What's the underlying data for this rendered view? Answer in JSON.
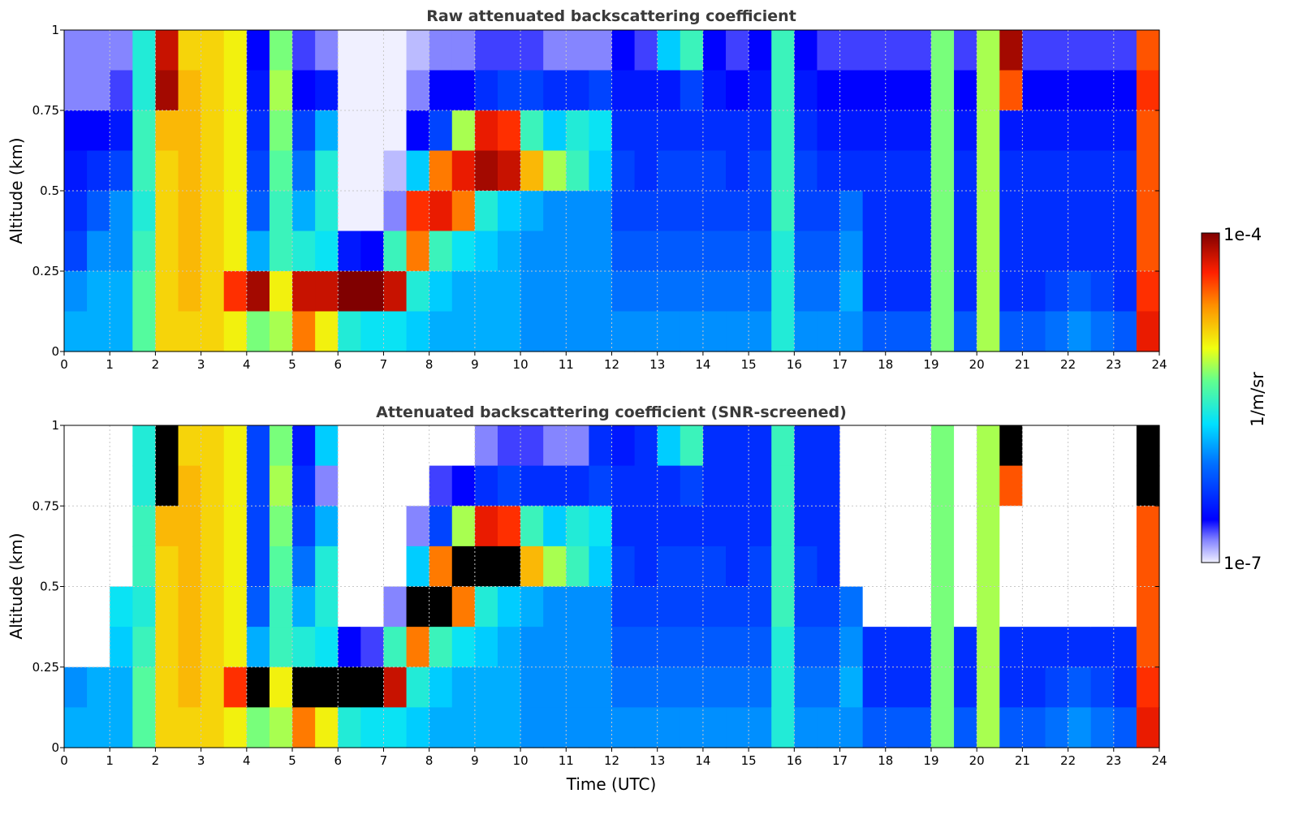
{
  "chart_data": [
    {
      "type": "heatmap",
      "title": "Raw attenuated backscattering coefficient",
      "xlabel": "",
      "ylabel": "Altitude (km)",
      "xlim": [
        0,
        24
      ],
      "ylim": [
        0,
        1
      ],
      "x_ticks": [
        "0",
        "1",
        "2",
        "3",
        "4",
        "5",
        "6",
        "7",
        "8",
        "9",
        "10",
        "11",
        "12",
        "13",
        "14",
        "15",
        "16",
        "17",
        "18",
        "19",
        "20",
        "21",
        "22",
        "23",
        "24"
      ],
      "y_ticks": [
        "0",
        "0.25",
        "0.5",
        "0.75",
        "1"
      ],
      "grid": true,
      "time_bin_hours": 0.5,
      "altitude_bins_top_to_bottom_km": [
        [
          0.875,
          1
        ],
        [
          0.75,
          0.875
        ],
        [
          0.625,
          0.75
        ],
        [
          0.5,
          0.625
        ],
        [
          0.375,
          0.5
        ],
        [
          0.25,
          0.375
        ],
        [
          0.125,
          0.25
        ],
        [
          0,
          0.125
        ]
      ],
      "value_units": "log10(1/m/sr)",
      "columns": [
        [
          -6.8,
          -6.8,
          -6.6,
          -6.5,
          -6.4,
          -6.3,
          -6.0,
          -5.9
        ],
        [
          -6.8,
          -6.8,
          -6.6,
          -6.4,
          -6.2,
          -6.0,
          -5.9,
          -5.9
        ],
        [
          -6.8,
          -6.7,
          -6.5,
          -6.3,
          -6.0,
          -6.0,
          -5.9,
          -5.9
        ],
        [
          -5.6,
          -5.6,
          -5.5,
          -5.5,
          -5.6,
          -5.5,
          -5.4,
          -5.4
        ],
        [
          -4.2,
          -4.1,
          -4.8,
          -4.9,
          -4.9,
          -4.9,
          -4.9,
          -4.9
        ],
        [
          -4.9,
          -4.8,
          -4.8,
          -4.8,
          -4.8,
          -4.8,
          -4.8,
          -4.9
        ],
        [
          -4.9,
          -4.9,
          -4.9,
          -4.9,
          -4.9,
          -4.9,
          -4.9,
          -4.9
        ],
        [
          -5.0,
          -5.0,
          -5.0,
          -5.0,
          -5.0,
          -5.0,
          -4.4,
          -5.0
        ],
        [
          -6.6,
          -6.5,
          -6.4,
          -6.3,
          -6.2,
          -5.9,
          -4.1,
          -5.3
        ],
        [
          -5.3,
          -5.2,
          -5.3,
          -5.4,
          -5.5,
          -5.5,
          -5.0,
          -5.2
        ],
        [
          -6.7,
          -6.6,
          -6.3,
          -6.1,
          -5.9,
          -5.6,
          -4.2,
          -4.6
        ],
        [
          -6.8,
          -6.5,
          -5.9,
          -5.6,
          -5.6,
          -5.7,
          -4.2,
          -5.0
        ],
        [
          -7.0,
          -7.0,
          -7.0,
          -7.0,
          -7.0,
          -6.5,
          -4.0,
          -5.6
        ],
        [
          -7.0,
          -7.0,
          -7.0,
          -7.0,
          -7.0,
          -6.6,
          -4.0,
          -5.7
        ],
        [
          -7.0,
          -7.0,
          -7.0,
          -6.9,
          -6.8,
          -5.5,
          -4.2,
          -5.7
        ],
        [
          -6.9,
          -6.8,
          -6.6,
          -5.8,
          -4.4,
          -4.6,
          -5.6,
          -5.8
        ],
        [
          -6.8,
          -6.6,
          -6.3,
          -4.6,
          -4.3,
          -5.5,
          -5.8,
          -5.9
        ],
        [
          -6.8,
          -6.6,
          -5.2,
          -4.3,
          -4.6,
          -5.7,
          -5.9,
          -5.9
        ],
        [
          -6.7,
          -6.4,
          -4.3,
          -4.1,
          -5.6,
          -5.8,
          -5.9,
          -5.9
        ],
        [
          -6.7,
          -6.3,
          -4.4,
          -4.2,
          -5.8,
          -5.9,
          -5.9,
          -5.9
        ],
        [
          -6.7,
          -6.3,
          -5.5,
          -4.8,
          -5.9,
          -6.0,
          -6.0,
          -6.0
        ],
        [
          -6.8,
          -6.4,
          -5.8,
          -5.2,
          -6.0,
          -6.0,
          -6.0,
          -6.0
        ],
        [
          -6.8,
          -6.4,
          -5.6,
          -5.5,
          -6.0,
          -6.0,
          -6.0,
          -6.0
        ],
        [
          -6.8,
          -6.3,
          -5.7,
          -5.8,
          -6.0,
          -6.0,
          -6.0,
          -6.0
        ],
        [
          -6.6,
          -6.5,
          -6.4,
          -6.3,
          -6.3,
          -6.2,
          -6.1,
          -6.0
        ],
        [
          -6.7,
          -6.5,
          -6.4,
          -6.4,
          -6.3,
          -6.2,
          -6.1,
          -6.0
        ],
        [
          -5.8,
          -6.5,
          -6.4,
          -6.3,
          -6.3,
          -6.2,
          -6.1,
          -6.0
        ],
        [
          -5.5,
          -6.3,
          -6.4,
          -6.3,
          -6.3,
          -6.2,
          -6.1,
          -6.0
        ],
        [
          -6.6,
          -6.5,
          -6.4,
          -6.3,
          -6.3,
          -6.2,
          -6.1,
          -6.0
        ],
        [
          -6.7,
          -6.6,
          -6.4,
          -6.4,
          -6.3,
          -6.2,
          -6.1,
          -6.0
        ],
        [
          -6.6,
          -6.5,
          -6.4,
          -6.3,
          -6.3,
          -6.2,
          -6.1,
          -6.0
        ],
        [
          -5.5,
          -5.5,
          -5.5,
          -5.5,
          -5.5,
          -5.6,
          -5.6,
          -5.6
        ],
        [
          -6.6,
          -6.5,
          -6.4,
          -6.3,
          -6.3,
          -6.2,
          -6.1,
          -6.0
        ],
        [
          -6.7,
          -6.6,
          -6.5,
          -6.4,
          -6.3,
          -6.2,
          -6.1,
          -6.0
        ],
        [
          -6.7,
          -6.6,
          -6.5,
          -6.4,
          -6.1,
          -6.0,
          -5.9,
          -6.0
        ],
        [
          -6.7,
          -6.6,
          -6.5,
          -6.4,
          -6.4,
          -6.4,
          -6.4,
          -6.2
        ],
        [
          -6.7,
          -6.6,
          -6.5,
          -6.4,
          -6.4,
          -6.4,
          -6.4,
          -6.2
        ],
        [
          -6.7,
          -6.6,
          -6.5,
          -6.4,
          -6.4,
          -6.4,
          -6.4,
          -6.2
        ],
        [
          -5.3,
          -5.3,
          -5.3,
          -5.3,
          -5.3,
          -5.3,
          -5.3,
          -5.3
        ],
        [
          -6.7,
          -6.6,
          -6.5,
          -6.4,
          -6.4,
          -6.4,
          -6.4,
          -6.2
        ],
        [
          -5.2,
          -5.2,
          -5.2,
          -5.2,
          -5.2,
          -5.2,
          -5.2,
          -5.2
        ],
        [
          -4.1,
          -4.5,
          -6.5,
          -6.4,
          -6.4,
          -6.4,
          -6.4,
          -6.2
        ],
        [
          -6.7,
          -6.6,
          -6.5,
          -6.4,
          -6.4,
          -6.4,
          -6.4,
          -6.2
        ],
        [
          -6.7,
          -6.6,
          -6.5,
          -6.4,
          -6.4,
          -6.4,
          -6.3,
          -6.1
        ],
        [
          -6.7,
          -6.6,
          -6.5,
          -6.4,
          -6.4,
          -6.4,
          -6.2,
          -6.0
        ],
        [
          -6.7,
          -6.6,
          -6.5,
          -6.4,
          -6.4,
          -6.4,
          -6.3,
          -6.1
        ],
        [
          -6.7,
          -6.6,
          -6.5,
          -6.4,
          -6.4,
          -6.4,
          -6.4,
          -6.2
        ],
        [
          -4.5,
          -4.4,
          -4.5,
          -4.5,
          -4.5,
          -4.5,
          -4.4,
          -4.3
        ]
      ]
    },
    {
      "type": "heatmap",
      "title": "Attenuated backscattering coefficient (SNR-screened)",
      "xlabel": "Time (UTC)",
      "ylabel": "Altitude (km)",
      "xlim": [
        0,
        24
      ],
      "ylim": [
        0,
        1
      ],
      "x_ticks": [
        "0",
        "1",
        "2",
        "3",
        "4",
        "5",
        "6",
        "7",
        "8",
        "9",
        "10",
        "11",
        "12",
        "13",
        "14",
        "15",
        "16",
        "17",
        "18",
        "19",
        "20",
        "21",
        "22",
        "23",
        "24"
      ],
      "y_ticks": [
        "0",
        "0.25",
        "0.5",
        "0.75",
        "1"
      ],
      "grid": true,
      "time_bin_hours": 0.5,
      "value_units": "log10(1/m/sr); null = screened out; above -4 = saturated (black)",
      "columns": [
        [
          null,
          null,
          null,
          null,
          null,
          null,
          -6.0,
          -5.9
        ],
        [
          null,
          null,
          null,
          null,
          null,
          null,
          -5.9,
          -5.9
        ],
        [
          null,
          null,
          null,
          null,
          -5.7,
          -5.8,
          -5.9,
          -5.9
        ],
        [
          -5.6,
          -5.6,
          -5.5,
          -5.5,
          -5.6,
          -5.5,
          -5.4,
          -5.4
        ],
        [
          -3.9,
          -3.9,
          -4.8,
          -4.9,
          -4.9,
          -4.9,
          -4.9,
          -4.9
        ],
        [
          -4.9,
          -4.8,
          -4.8,
          -4.8,
          -4.8,
          -4.8,
          -4.8,
          -4.9
        ],
        [
          -4.9,
          -4.9,
          -4.9,
          -4.9,
          -4.9,
          -4.9,
          -4.9,
          -4.9
        ],
        [
          -5.0,
          -5.0,
          -5.0,
          -5.0,
          -5.0,
          -5.0,
          -4.4,
          -5.0
        ],
        [
          -6.3,
          -6.3,
          -6.3,
          -6.3,
          -6.2,
          -5.9,
          -3.9,
          -5.3
        ],
        [
          -5.3,
          -5.2,
          -5.3,
          -5.4,
          -5.5,
          -5.5,
          -5.0,
          -5.2
        ],
        [
          -6.5,
          -6.4,
          -6.3,
          -6.1,
          -5.9,
          -5.6,
          -3.9,
          -4.6
        ],
        [
          -5.8,
          -6.8,
          -5.9,
          -5.6,
          -5.6,
          -5.7,
          -3.9,
          -5.0
        ],
        [
          null,
          null,
          null,
          null,
          null,
          -6.6,
          -3.9,
          -5.6
        ],
        [
          null,
          null,
          null,
          null,
          null,
          -6.7,
          -3.9,
          -5.7
        ],
        [
          null,
          null,
          null,
          null,
          -6.8,
          -5.5,
          -4.2,
          -5.7
        ],
        [
          null,
          null,
          -6.8,
          -5.8,
          -3.9,
          -4.6,
          -5.6,
          -5.8
        ],
        [
          null,
          -6.7,
          -6.3,
          -4.6,
          -3.9,
          -5.5,
          -5.8,
          -5.9
        ],
        [
          null,
          -6.6,
          -5.2,
          -3.9,
          -4.6,
          -5.7,
          -5.9,
          -5.9
        ],
        [
          -6.8,
          -6.4,
          -4.3,
          -3.9,
          -5.6,
          -5.8,
          -5.9,
          -5.9
        ],
        [
          -6.7,
          -6.3,
          -4.4,
          -3.9,
          -5.8,
          -5.9,
          -5.9,
          -5.9
        ],
        [
          -6.7,
          -6.4,
          -5.5,
          -4.8,
          -5.9,
          -6.0,
          -6.0,
          -6.0
        ],
        [
          -6.8,
          -6.4,
          -5.8,
          -5.2,
          -6.0,
          -6.0,
          -6.0,
          -6.0
        ],
        [
          -6.8,
          -6.4,
          -5.6,
          -5.5,
          -6.0,
          -6.0,
          -6.0,
          -6.0
        ],
        [
          -6.4,
          -6.3,
          -5.7,
          -5.8,
          -6.0,
          -6.0,
          -6.0,
          -6.0
        ],
        [
          -6.5,
          -6.4,
          -6.4,
          -6.3,
          -6.3,
          -6.2,
          -6.1,
          -6.0
        ],
        [
          -6.4,
          -6.4,
          -6.4,
          -6.4,
          -6.3,
          -6.2,
          -6.1,
          -6.0
        ],
        [
          -5.8,
          -6.4,
          -6.4,
          -6.3,
          -6.3,
          -6.2,
          -6.1,
          -6.0
        ],
        [
          -5.5,
          -6.3,
          -6.4,
          -6.3,
          -6.3,
          -6.2,
          -6.1,
          -6.0
        ],
        [
          -6.4,
          -6.4,
          -6.4,
          -6.3,
          -6.3,
          -6.2,
          -6.1,
          -6.0
        ],
        [
          -6.4,
          -6.4,
          -6.4,
          -6.4,
          -6.3,
          -6.2,
          -6.1,
          -6.0
        ],
        [
          -6.4,
          -6.4,
          -6.4,
          -6.3,
          -6.3,
          -6.2,
          -6.1,
          -6.0
        ],
        [
          -5.5,
          -5.5,
          -5.5,
          -5.5,
          -5.5,
          -5.6,
          -5.6,
          -5.6
        ],
        [
          -6.4,
          -6.4,
          -6.4,
          -6.3,
          -6.3,
          -6.2,
          -6.1,
          -6.0
        ],
        [
          -6.4,
          -6.4,
          -6.4,
          -6.4,
          -6.3,
          -6.2,
          -6.1,
          -6.0
        ],
        [
          null,
          null,
          null,
          null,
          -6.1,
          -6.0,
          -5.9,
          -6.0
        ],
        [
          null,
          null,
          null,
          null,
          null,
          -6.4,
          -6.4,
          -6.2
        ],
        [
          null,
          null,
          null,
          null,
          null,
          -6.4,
          -6.4,
          -6.2
        ],
        [
          null,
          null,
          null,
          null,
          null,
          -6.4,
          -6.4,
          -6.2
        ],
        [
          -5.3,
          -5.3,
          -5.3,
          -5.3,
          -5.3,
          -5.3,
          -5.3,
          -5.3
        ],
        [
          null,
          null,
          null,
          null,
          null,
          -6.4,
          -6.4,
          -6.2
        ],
        [
          -5.2,
          -5.2,
          -5.2,
          -5.2,
          -5.2,
          -5.2,
          -5.2,
          -5.2
        ],
        [
          -3.9,
          -4.5,
          null,
          null,
          null,
          -6.4,
          -6.4,
          -6.2
        ],
        [
          null,
          null,
          null,
          null,
          null,
          -6.4,
          -6.4,
          -6.2
        ],
        [
          null,
          null,
          null,
          null,
          null,
          -6.4,
          -6.3,
          -6.1
        ],
        [
          null,
          null,
          null,
          null,
          null,
          -6.4,
          -6.2,
          -6.0
        ],
        [
          null,
          null,
          null,
          null,
          null,
          -6.4,
          -6.3,
          -6.1
        ],
        [
          null,
          null,
          null,
          null,
          null,
          -6.4,
          -6.4,
          -6.2
        ],
        [
          -3.9,
          -3.9,
          -4.5,
          -4.5,
          -4.5,
          -4.5,
          -4.4,
          -4.3
        ]
      ]
    }
  ],
  "colorbar": {
    "label": "1/m/sr",
    "max_label": "1e-4",
    "min_label": "1e-7",
    "range_log10": [
      -7,
      -4
    ]
  }
}
